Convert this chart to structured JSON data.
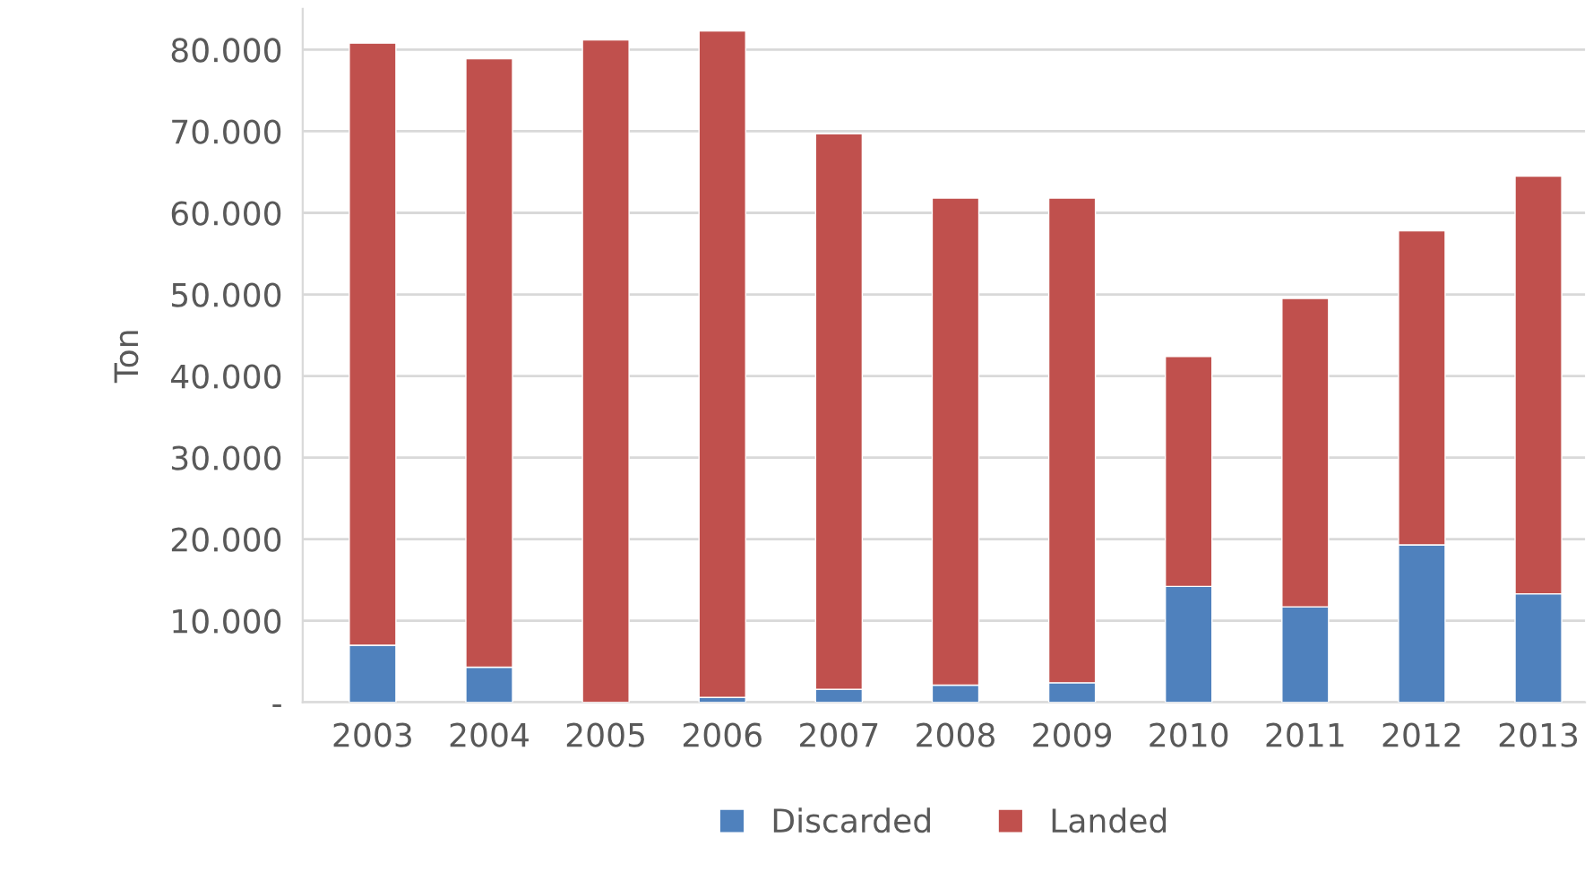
{
  "chart_data": {
    "type": "bar",
    "stacked": true,
    "ylabel": "Ton",
    "categories": [
      "2003",
      "2004",
      "2005",
      "2006",
      "2007",
      "2008",
      "2009",
      "2010",
      "2011",
      "2012",
      "2013"
    ],
    "series": [
      {
        "name": "Discarded",
        "color": "#4f81bd",
        "values": [
          7000,
          4300,
          0,
          600,
          1600,
          2100,
          2400,
          14200,
          11700,
          19300,
          13300
        ]
      },
      {
        "name": "Landed",
        "color": "#c0504d",
        "values": [
          73800,
          74600,
          81200,
          81700,
          68100,
          59700,
          59400,
          28200,
          37800,
          38500,
          51200
        ]
      }
    ],
    "ylim": [
      0,
      85000
    ],
    "yticks": [
      {
        "value": 0,
        "label": "-"
      },
      {
        "value": 10000,
        "label": "10.000"
      },
      {
        "value": 20000,
        "label": "20.000"
      },
      {
        "value": 30000,
        "label": "30.000"
      },
      {
        "value": 40000,
        "label": "40.000"
      },
      {
        "value": 50000,
        "label": "50.000"
      },
      {
        "value": 60000,
        "label": "60.000"
      },
      {
        "value": 70000,
        "label": "70.000"
      },
      {
        "value": 80000,
        "label": "80.000"
      }
    ],
    "grid": "y",
    "legend": "bottom"
  }
}
